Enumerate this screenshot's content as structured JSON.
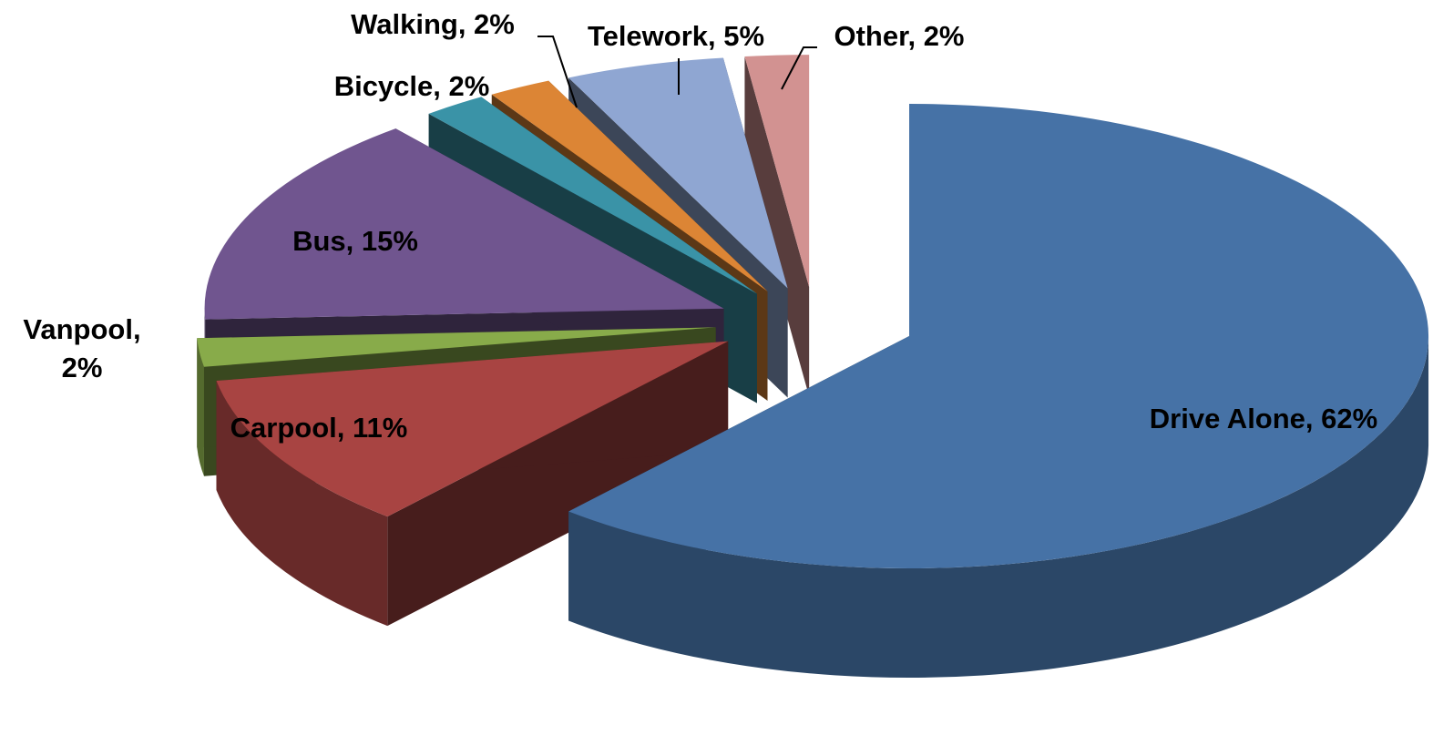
{
  "chart_data": {
    "type": "pie",
    "values": [
      62,
      11,
      2,
      15,
      2,
      2,
      5,
      2
    ],
    "value_labels": [
      "Drive Alone, 62%",
      "Carpool, 11%",
      "Vanpool, 2%",
      "Bus, 15%",
      "Bicycle, 2%",
      "Walking, 2%",
      "Telework, 5%",
      "Other, 2%"
    ],
    "colors": [
      "#4672a6",
      "#a84442",
      "#88ab4a",
      "#70558f",
      "#3a93a7",
      "#dc8535",
      "#8fa6d2",
      "#d29291"
    ]
  }
}
